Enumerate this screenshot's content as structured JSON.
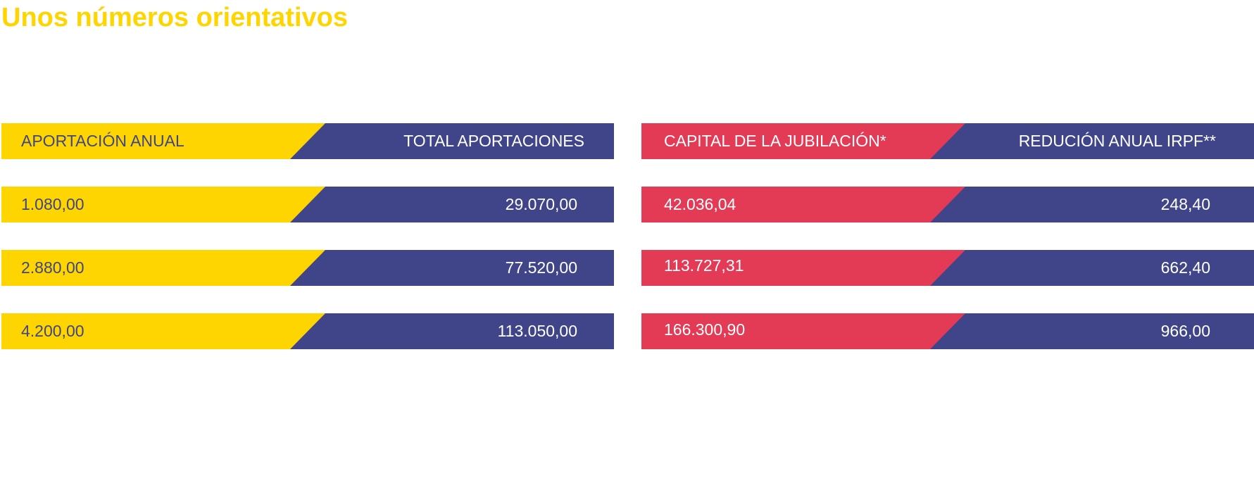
{
  "title": "Unos números orientativos",
  "colors": {
    "yellow": "#FFD500",
    "navy": "#40458A",
    "red": "#E33A55",
    "white": "#FFFFFF"
  },
  "left_table": {
    "header": {
      "left": "APORTACIÓN ANUAL",
      "right": "TOTAL APORTACIONES"
    },
    "rows": [
      {
        "left": "1.080,00",
        "right": "29.070,00"
      },
      {
        "left": "2.880,00",
        "right": "77.520,00"
      },
      {
        "left": "4.200,00",
        "right": "113.050,00"
      }
    ]
  },
  "right_table": {
    "header": {
      "left": "CAPITAL DE LA JUBILACIÓN*",
      "right": "REDUCIÓN ANUAL IRPF**"
    },
    "rows": [
      {
        "left": "42.036,04",
        "right": "248,40"
      },
      {
        "left": "113.727,31",
        "right": "662,40"
      },
      {
        "left": "166.300,90",
        "right": "966,00"
      }
    ]
  }
}
